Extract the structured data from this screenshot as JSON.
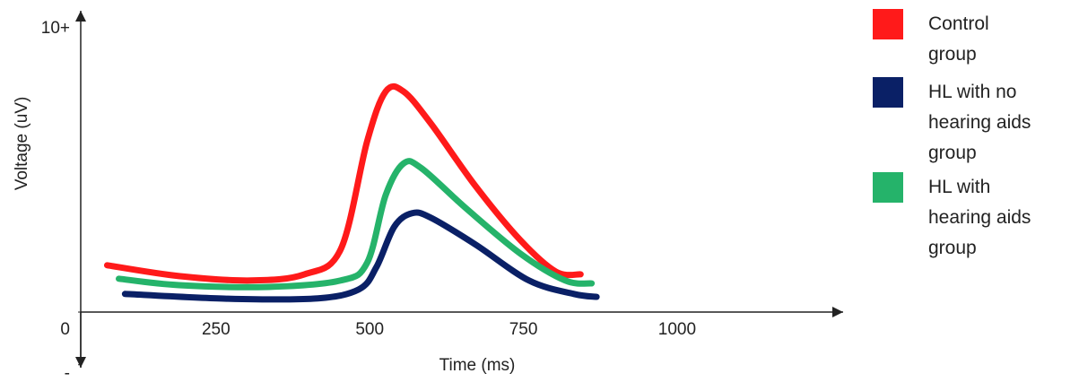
{
  "chart_data": {
    "type": "line",
    "x_label": "Time (ms)",
    "y_label": "Voltage (uV)",
    "xlim": [
      30,
      1270
    ],
    "ylim": [
      -1.9,
      10.3
    ],
    "xticks": [
      250,
      500,
      750,
      1000
    ],
    "yticks": [
      {
        "value": 10,
        "label": "10+"
      },
      0,
      {
        "value": -1.8,
        "label": "-"
      }
    ],
    "series": [
      {
        "name": "Control group",
        "color": "#ff1a1a",
        "x": [
          73,
          190,
          307,
          394,
          453,
          496,
          526,
          555,
          599,
          672,
          745,
          803,
          843
        ],
        "values": [
          1.6,
          1.23,
          1.08,
          1.29,
          2.15,
          5.85,
          7.54,
          7.54,
          6.46,
          4.31,
          2.46,
          1.38,
          1.29
        ]
      },
      {
        "name": "HL with no hearing aids group",
        "color": "#0a2066",
        "x": [
          102,
          263,
          409,
          482,
          511,
          540,
          569,
          599,
          672,
          759,
          832,
          869
        ],
        "values": [
          0.62,
          0.46,
          0.46,
          0.77,
          1.54,
          2.92,
          3.38,
          3.23,
          2.31,
          1.08,
          0.62,
          0.52
        ]
      },
      {
        "name": "HL with hearing aids group",
        "color": "#25b36a",
        "x": [
          92,
          190,
          336,
          453,
          496,
          526,
          555,
          584,
          657,
          745,
          818,
          861
        ],
        "values": [
          1.14,
          0.92,
          0.86,
          1.08,
          1.69,
          4.0,
          5.08,
          4.92,
          3.54,
          2.0,
          1.08,
          0.98
        ]
      }
    ]
  }
}
